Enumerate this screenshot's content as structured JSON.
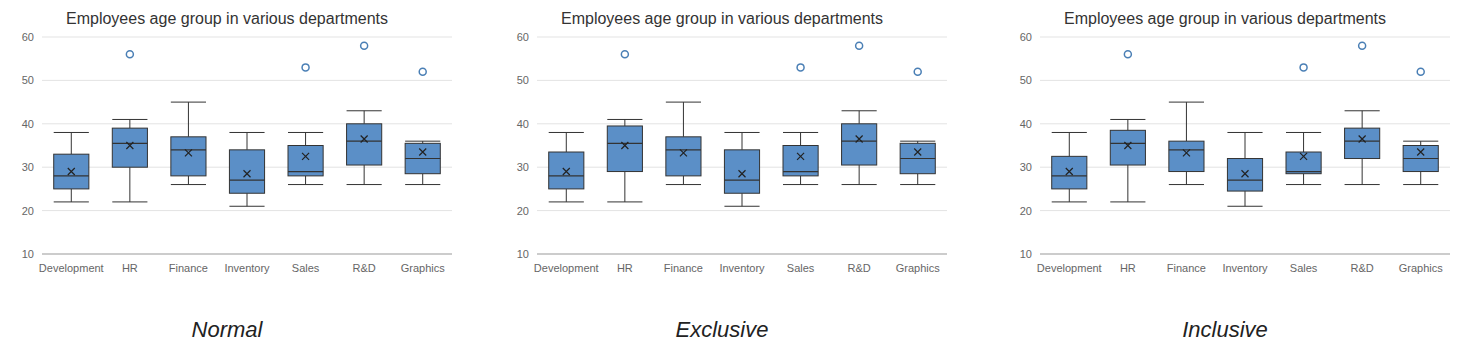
{
  "chart_data": [
    {
      "type": "box",
      "title": "Employees age group in various departments",
      "subtitle": "Normal",
      "categories": [
        "Development",
        "HR",
        "Finance",
        "Inventory",
        "Sales",
        "R&D",
        "Graphics"
      ],
      "boxes": [
        {
          "min": 22,
          "q1": 25,
          "median": 28,
          "q3": 33,
          "max": 38,
          "mean": 29,
          "outliers": []
        },
        {
          "min": 22,
          "q1": 30,
          "median": 35.5,
          "q3": 39,
          "max": 41,
          "mean": 35,
          "outliers": [
            56
          ]
        },
        {
          "min": 26,
          "q1": 28,
          "median": 34,
          "q3": 37,
          "max": 45,
          "mean": 33.3,
          "outliers": []
        },
        {
          "min": 21,
          "q1": 24,
          "median": 27,
          "q3": 34,
          "max": 38,
          "mean": 28.5,
          "outliers": []
        },
        {
          "min": 26,
          "q1": 28,
          "median": 29,
          "q3": 35,
          "max": 38,
          "mean": 32.5,
          "outliers": [
            53
          ]
        },
        {
          "min": 26,
          "q1": 30.5,
          "median": 36,
          "q3": 40,
          "max": 43,
          "mean": 36.5,
          "outliers": [
            58
          ]
        },
        {
          "min": 26,
          "q1": 28.5,
          "median": 32,
          "q3": 35.5,
          "max": 36,
          "mean": 33.5,
          "outliers": [
            52
          ]
        }
      ],
      "color": "#5b8fc7",
      "ylim": [
        10,
        60
      ],
      "yticks": [
        10,
        20,
        30,
        40,
        50,
        60
      ],
      "grid": true
    },
    {
      "type": "box",
      "title": "Employees age group in various departments",
      "subtitle": "Exclusive",
      "categories": [
        "Development",
        "HR",
        "Finance",
        "Inventory",
        "Sales",
        "R&D",
        "Graphics"
      ],
      "boxes": [
        {
          "min": 22,
          "q1": 25,
          "median": 28,
          "q3": 33.5,
          "max": 38,
          "mean": 29,
          "outliers": []
        },
        {
          "min": 22,
          "q1": 29,
          "median": 35.5,
          "q3": 39.5,
          "max": 41,
          "mean": 35,
          "outliers": [
            56
          ]
        },
        {
          "min": 26,
          "q1": 28,
          "median": 34,
          "q3": 37,
          "max": 45,
          "mean": 33.3,
          "outliers": []
        },
        {
          "min": 21,
          "q1": 24,
          "median": 27,
          "q3": 34,
          "max": 38,
          "mean": 28.5,
          "outliers": []
        },
        {
          "min": 26,
          "q1": 28,
          "median": 29,
          "q3": 35,
          "max": 38,
          "mean": 32.5,
          "outliers": [
            53
          ]
        },
        {
          "min": 26,
          "q1": 30.5,
          "median": 36,
          "q3": 40,
          "max": 43,
          "mean": 36.5,
          "outliers": [
            58
          ]
        },
        {
          "min": 26,
          "q1": 28.5,
          "median": 32,
          "q3": 35.5,
          "max": 36,
          "mean": 33.5,
          "outliers": [
            52
          ]
        }
      ],
      "color": "#5b8fc7",
      "ylim": [
        10,
        60
      ],
      "yticks": [
        10,
        20,
        30,
        40,
        50,
        60
      ],
      "grid": true
    },
    {
      "type": "box",
      "title": "Employees age group in various departments",
      "subtitle": "Inclusive",
      "categories": [
        "Development",
        "HR",
        "Finance",
        "Inventory",
        "Sales",
        "R&D",
        "Graphics"
      ],
      "boxes": [
        {
          "min": 22,
          "q1": 25,
          "median": 28,
          "q3": 32.5,
          "max": 38,
          "mean": 29,
          "outliers": []
        },
        {
          "min": 22,
          "q1": 30.5,
          "median": 35.5,
          "q3": 38.5,
          "max": 41,
          "mean": 35,
          "outliers": [
            56
          ]
        },
        {
          "min": 26,
          "q1": 29,
          "median": 34,
          "q3": 36,
          "max": 45,
          "mean": 33.3,
          "outliers": []
        },
        {
          "min": 21,
          "q1": 24.5,
          "median": 27,
          "q3": 32,
          "max": 38,
          "mean": 28.5,
          "outliers": []
        },
        {
          "min": 26,
          "q1": 28.5,
          "median": 29,
          "q3": 33.5,
          "max": 38,
          "mean": 32.5,
          "outliers": [
            53
          ]
        },
        {
          "min": 26,
          "q1": 32,
          "median": 36,
          "q3": 39,
          "max": 43,
          "mean": 36.5,
          "outliers": [
            58
          ]
        },
        {
          "min": 26,
          "q1": 29,
          "median": 32,
          "q3": 35,
          "max": 36,
          "mean": 33.5,
          "outliers": [
            52
          ]
        }
      ],
      "color": "#5b8fc7",
      "ylim": [
        10,
        60
      ],
      "yticks": [
        10,
        20,
        30,
        40,
        50,
        60
      ],
      "grid": true
    }
  ]
}
